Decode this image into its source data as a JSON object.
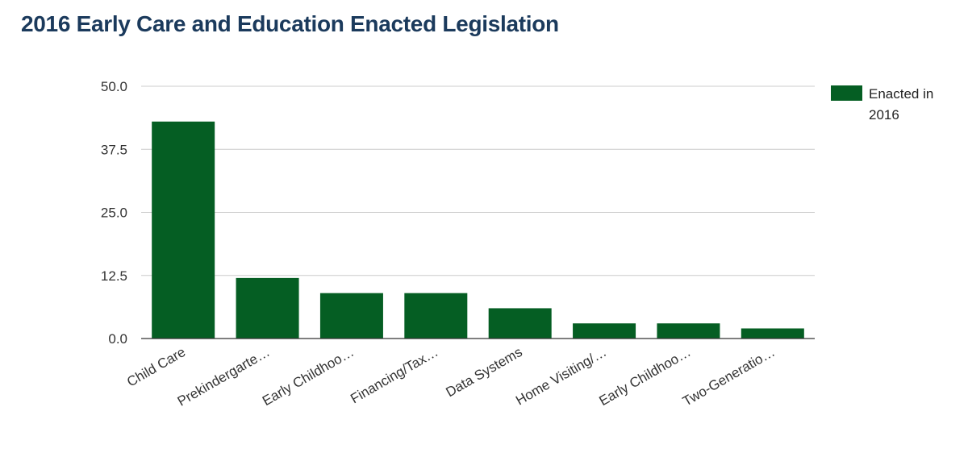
{
  "chart_data": {
    "type": "bar",
    "title": "2016 Early Care and Education Enacted Legislation",
    "categories": [
      "Child Care",
      "Prekindergarte…",
      "Early Childhoo…",
      "Financing/Tax…",
      "Data Systems",
      "Home Visiting/…",
      "Early Childhoo…",
      "Two-Generatio…"
    ],
    "series": [
      {
        "name": "Enacted in 2016",
        "color": "#055e23",
        "values": [
          43,
          12,
          9,
          9,
          6,
          3,
          3,
          2
        ]
      }
    ],
    "yticks": [
      "0.0",
      "12.5",
      "25.0",
      "37.5",
      "50.0"
    ],
    "ylim": [
      0,
      50
    ],
    "xlabel": "",
    "ylabel": "",
    "grid": true,
    "legend": {
      "position": "right",
      "lines": [
        "Enacted in",
        "2016"
      ]
    }
  }
}
